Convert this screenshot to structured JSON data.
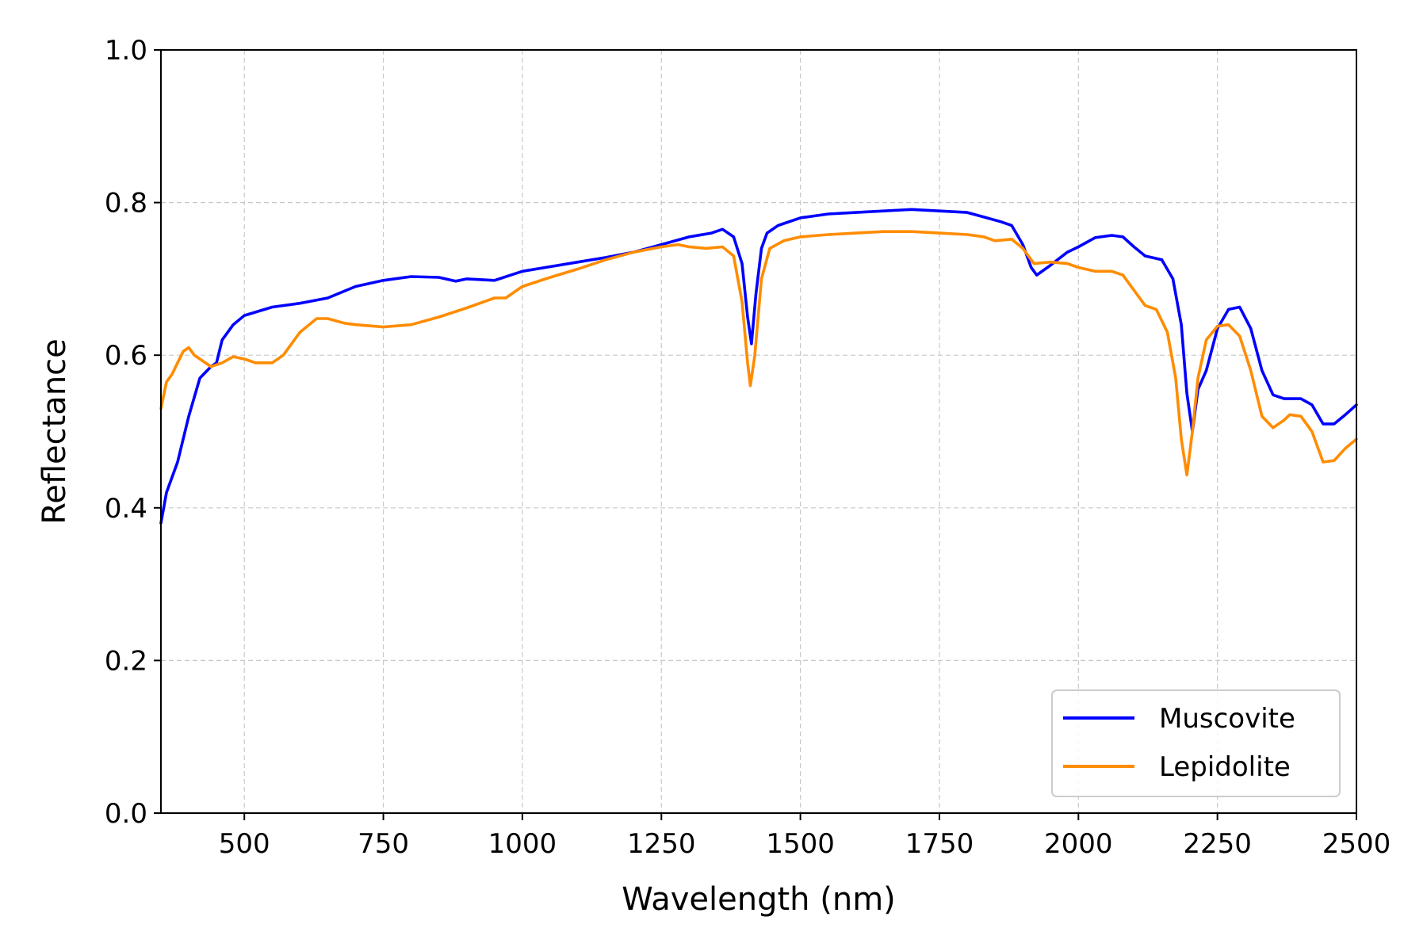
{
  "chart_data": {
    "type": "line",
    "title": "",
    "xlabel": "Wavelength (nm)",
    "ylabel": "Reflectance",
    "xlim": [
      350,
      2500
    ],
    "ylim": [
      0.0,
      1.0
    ],
    "xticks": [
      500,
      750,
      1000,
      1250,
      1500,
      1750,
      2000,
      2250,
      2500
    ],
    "xtick_labels": [
      "500",
      "750",
      "1000",
      "1250",
      "1500",
      "1750",
      "2000",
      "2250",
      "2500"
    ],
    "yticks": [
      0.0,
      0.2,
      0.4,
      0.6,
      0.8,
      1.0
    ],
    "ytick_labels": [
      "0.0",
      "0.2",
      "0.4",
      "0.6",
      "0.8",
      "1.0"
    ],
    "grid": true,
    "legend_position": "bottom-right",
    "series": [
      {
        "name": "Muscovite",
        "color": "#0000ff",
        "x": [
          350,
          360,
          380,
          400,
          420,
          440,
          450,
          460,
          480,
          500,
          550,
          600,
          650,
          700,
          750,
          800,
          850,
          880,
          900,
          950,
          1000,
          1050,
          1100,
          1150,
          1200,
          1250,
          1300,
          1340,
          1360,
          1380,
          1395,
          1405,
          1412,
          1420,
          1430,
          1440,
          1460,
          1500,
          1550,
          1600,
          1650,
          1700,
          1750,
          1800,
          1830,
          1860,
          1880,
          1900,
          1915,
          1925,
          1950,
          1980,
          2000,
          2030,
          2060,
          2080,
          2100,
          2120,
          2150,
          2170,
          2185,
          2195,
          2205,
          2215,
          2230,
          2250,
          2270,
          2290,
          2310,
          2330,
          2350,
          2370,
          2400,
          2420,
          2440,
          2460,
          2480,
          2500
        ],
        "values": [
          0.38,
          0.42,
          0.46,
          0.52,
          0.57,
          0.585,
          0.59,
          0.62,
          0.64,
          0.652,
          0.663,
          0.668,
          0.675,
          0.69,
          0.698,
          0.703,
          0.702,
          0.697,
          0.7,
          0.698,
          0.71,
          0.716,
          0.722,
          0.728,
          0.735,
          0.745,
          0.755,
          0.76,
          0.765,
          0.755,
          0.72,
          0.65,
          0.615,
          0.68,
          0.74,
          0.76,
          0.77,
          0.78,
          0.785,
          0.787,
          0.789,
          0.791,
          0.789,
          0.787,
          0.781,
          0.775,
          0.77,
          0.745,
          0.715,
          0.705,
          0.718,
          0.735,
          0.742,
          0.754,
          0.757,
          0.755,
          0.742,
          0.73,
          0.725,
          0.7,
          0.64,
          0.55,
          0.5,
          0.555,
          0.58,
          0.635,
          0.66,
          0.663,
          0.635,
          0.58,
          0.548,
          0.543,
          0.543,
          0.535,
          0.51,
          0.51,
          0.522,
          0.535
        ]
      },
      {
        "name": "Lepidolite",
        "color": "#ff8c00",
        "x": [
          350,
          360,
          370,
          380,
          390,
          400,
          410,
          420,
          440,
          460,
          480,
          500,
          520,
          550,
          570,
          600,
          630,
          650,
          680,
          700,
          750,
          800,
          850,
          900,
          950,
          970,
          1000,
          1050,
          1100,
          1150,
          1200,
          1250,
          1280,
          1300,
          1330,
          1360,
          1380,
          1395,
          1405,
          1410,
          1418,
          1430,
          1445,
          1470,
          1500,
          1550,
          1600,
          1650,
          1700,
          1750,
          1800,
          1830,
          1850,
          1880,
          1900,
          1920,
          1950,
          1980,
          2000,
          2030,
          2060,
          2080,
          2100,
          2120,
          2140,
          2160,
          2175,
          2185,
          2195,
          2205,
          2215,
          2230,
          2250,
          2270,
          2290,
          2310,
          2330,
          2350,
          2370,
          2380,
          2400,
          2420,
          2440,
          2460,
          2480,
          2500
        ],
        "values": [
          0.53,
          0.565,
          0.575,
          0.59,
          0.605,
          0.61,
          0.6,
          0.595,
          0.585,
          0.59,
          0.598,
          0.595,
          0.59,
          0.59,
          0.6,
          0.63,
          0.648,
          0.648,
          0.642,
          0.64,
          0.637,
          0.64,
          0.65,
          0.662,
          0.675,
          0.675,
          0.69,
          0.702,
          0.713,
          0.725,
          0.735,
          0.742,
          0.745,
          0.742,
          0.74,
          0.742,
          0.73,
          0.67,
          0.59,
          0.56,
          0.6,
          0.7,
          0.74,
          0.75,
          0.755,
          0.758,
          0.76,
          0.762,
          0.762,
          0.76,
          0.758,
          0.755,
          0.75,
          0.752,
          0.74,
          0.72,
          0.722,
          0.72,
          0.715,
          0.71,
          0.71,
          0.705,
          0.685,
          0.665,
          0.66,
          0.63,
          0.57,
          0.49,
          0.443,
          0.5,
          0.57,
          0.62,
          0.638,
          0.64,
          0.625,
          0.58,
          0.52,
          0.505,
          0.515,
          0.522,
          0.52,
          0.5,
          0.46,
          0.462,
          0.478,
          0.49
        ]
      }
    ]
  }
}
